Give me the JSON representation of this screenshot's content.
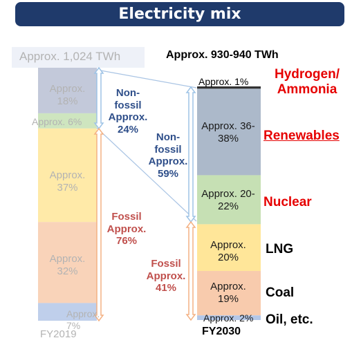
{
  "title": "Electricity mix",
  "chart_data": {
    "type": "stacked-bar",
    "categories": [
      "FY2019",
      "FY2030"
    ],
    "totals": [
      "Approx. 1,024 TWh",
      "Approx. 930-940 TWh"
    ],
    "series": [
      {
        "name": "Hydrogen/ Ammonia",
        "color": "#333333",
        "values": [
          0,
          1
        ],
        "labels": [
          "",
          "Approx. 1%"
        ]
      },
      {
        "name": "Renewables",
        "color": "#b8c0d4",
        "values": [
          18,
          37
        ],
        "labels": [
          "Approx. 18%",
          "Approx. 36-38%"
        ]
      },
      {
        "name": "Nuclear",
        "color": "#c6e0b4",
        "values": [
          6,
          21
        ],
        "labels": [
          "Approx. 6%",
          "Approx. 20-22%"
        ]
      },
      {
        "name": "LNG",
        "color": "#ffe699",
        "values": [
          37,
          20
        ],
        "labels": [
          "Approx. 37%",
          "Approx. 20%"
        ]
      },
      {
        "name": "Coal",
        "color": "#f8cbad",
        "values": [
          32,
          19
        ],
        "labels": [
          "Approx. 32%",
          "Approx. 19%"
        ]
      },
      {
        "name": "Oil, etc.",
        "color": "#b4c7e7",
        "values": [
          7,
          2
        ],
        "labels": [
          "Approx. 7%",
          "Approx. 2%"
        ]
      }
    ],
    "groups": [
      {
        "category": "FY2019",
        "nonfossil": "Non- fossil Approx. 24%",
        "fossil": "Fossil Approx. 76%"
      },
      {
        "category": "FY2030",
        "nonfossil": "Non- fossil Approx. 59%",
        "fossil": "Fossil Approx. 41%"
      }
    ]
  },
  "legend": {
    "hydrogen": "Hydrogen/ Ammonia",
    "renewables": "Renewables",
    "nuclear": "Nuclear",
    "lng": "LNG",
    "coal": "Coal",
    "oil": "Oil, etc."
  },
  "colors": {
    "title_bg": "#1f3a6b",
    "nonfossil_text": "#2f4f8a",
    "fossil_text": "#c0504d",
    "legend_red": "#e60000",
    "arrow_blue": "#9dc3e6",
    "arrow_orange": "#f4b183"
  }
}
